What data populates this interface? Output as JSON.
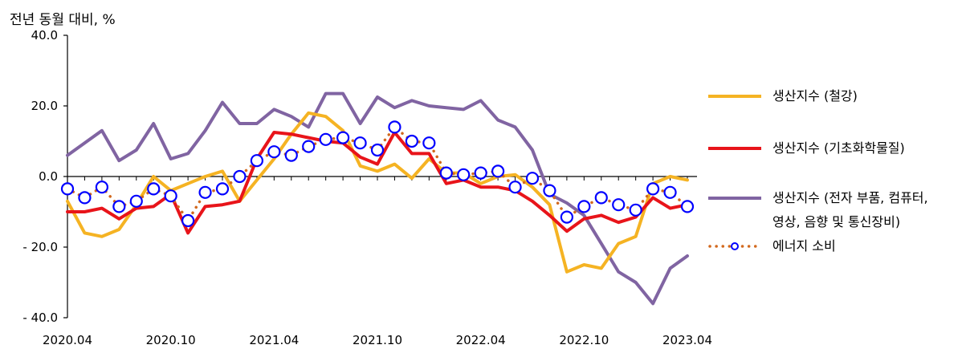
{
  "chart_data": {
    "type": "line",
    "title": "",
    "ylabel": "전년 동월 대비, %",
    "ylim": [
      -40,
      40
    ],
    "yticks": [
      40,
      20,
      0,
      -20,
      -40
    ],
    "ytick_labels": [
      "40.0",
      "20.0",
      "0.0",
      "- 20.0",
      "- 40.0"
    ],
    "x": [
      "2020.04",
      "2020.05",
      "2020.06",
      "2020.07",
      "2020.08",
      "2020.09",
      "2020.10",
      "2020.11",
      "2020.12",
      "2021.01",
      "2021.02",
      "2021.03",
      "2021.04",
      "2021.05",
      "2021.06",
      "2021.07",
      "2021.08",
      "2021.09",
      "2021.10",
      "2021.11",
      "2021.12",
      "2022.01",
      "2022.02",
      "2022.03",
      "2022.04",
      "2022.05",
      "2022.06",
      "2022.07",
      "2022.08",
      "2022.09",
      "2022.10",
      "2022.11",
      "2022.12",
      "2023.01",
      "2023.02",
      "2023.03",
      "2023.04"
    ],
    "xtick_labels": [
      "2020.04",
      "2020.10",
      "2021.04",
      "2021.10",
      "2022.04",
      "2022.10",
      "2023.04"
    ],
    "xtick_index": [
      0,
      6,
      12,
      18,
      24,
      30,
      36
    ],
    "grid": false,
    "legend_position": "right",
    "series": [
      {
        "name": "생산지수 (철강)",
        "color": "#F5B323",
        "style": "solid",
        "values": [
          -7,
          -16,
          -17,
          -15,
          -8,
          0,
          -4,
          -2,
          0,
          1.5,
          -7,
          -1,
          5,
          12,
          18,
          17,
          13,
          3,
          1.5,
          3.5,
          -0.5,
          5,
          1,
          1,
          -2,
          0,
          0.5,
          -3,
          -8,
          -27,
          -25,
          -26,
          -19,
          -17,
          -2,
          0,
          -1
        ]
      },
      {
        "name": "생산지수 (기초화학물질)",
        "color": "#E8141A",
        "style": "solid",
        "values": [
          -10,
          -10,
          -9,
          -12,
          -9,
          -8.5,
          -5,
          -16,
          -8.5,
          -8,
          -7,
          5,
          12.5,
          12,
          11,
          10,
          9.5,
          5.5,
          3.5,
          12.5,
          6.5,
          6.5,
          -2,
          -1,
          -3,
          -3,
          -4,
          -7,
          -11,
          -15.5,
          -12,
          -11,
          -13,
          -11.5,
          -6,
          -9,
          -8
        ]
      },
      {
        "name": "생산지수 (전자 부품, 컴퓨터,\n영상, 음향 및 통신장비)",
        "color": "#8064A2",
        "style": "solid",
        "values": [
          6,
          9.5,
          13,
          4.5,
          7.5,
          15,
          5,
          6.5,
          13,
          21,
          15,
          15,
          19,
          17,
          14,
          23.5,
          23.5,
          15,
          22.5,
          19.5,
          21.5,
          20,
          19.5,
          19,
          21.5,
          16,
          14,
          7.5,
          -5,
          -7.5,
          -11,
          -19,
          -27,
          -30,
          -36,
          -26,
          -22.5
        ]
      },
      {
        "name": "에너지 소비",
        "color": "#D2691E",
        "marker_color": "#0000FF",
        "style": "dotted-markers",
        "values": [
          -3.5,
          -6,
          -3,
          -8.5,
          -7,
          -3.5,
          -5.5,
          -12.5,
          -4.5,
          -3.5,
          0,
          4.5,
          7,
          6,
          8.5,
          10.5,
          11,
          9.5,
          7.5,
          14,
          10,
          9.5,
          1,
          0.5,
          1,
          1.5,
          -3,
          -0.5,
          -4,
          -11.5,
          -8.5,
          -6,
          -8,
          -9.5,
          -3.5,
          -4.5,
          -8.5
        ]
      }
    ]
  }
}
